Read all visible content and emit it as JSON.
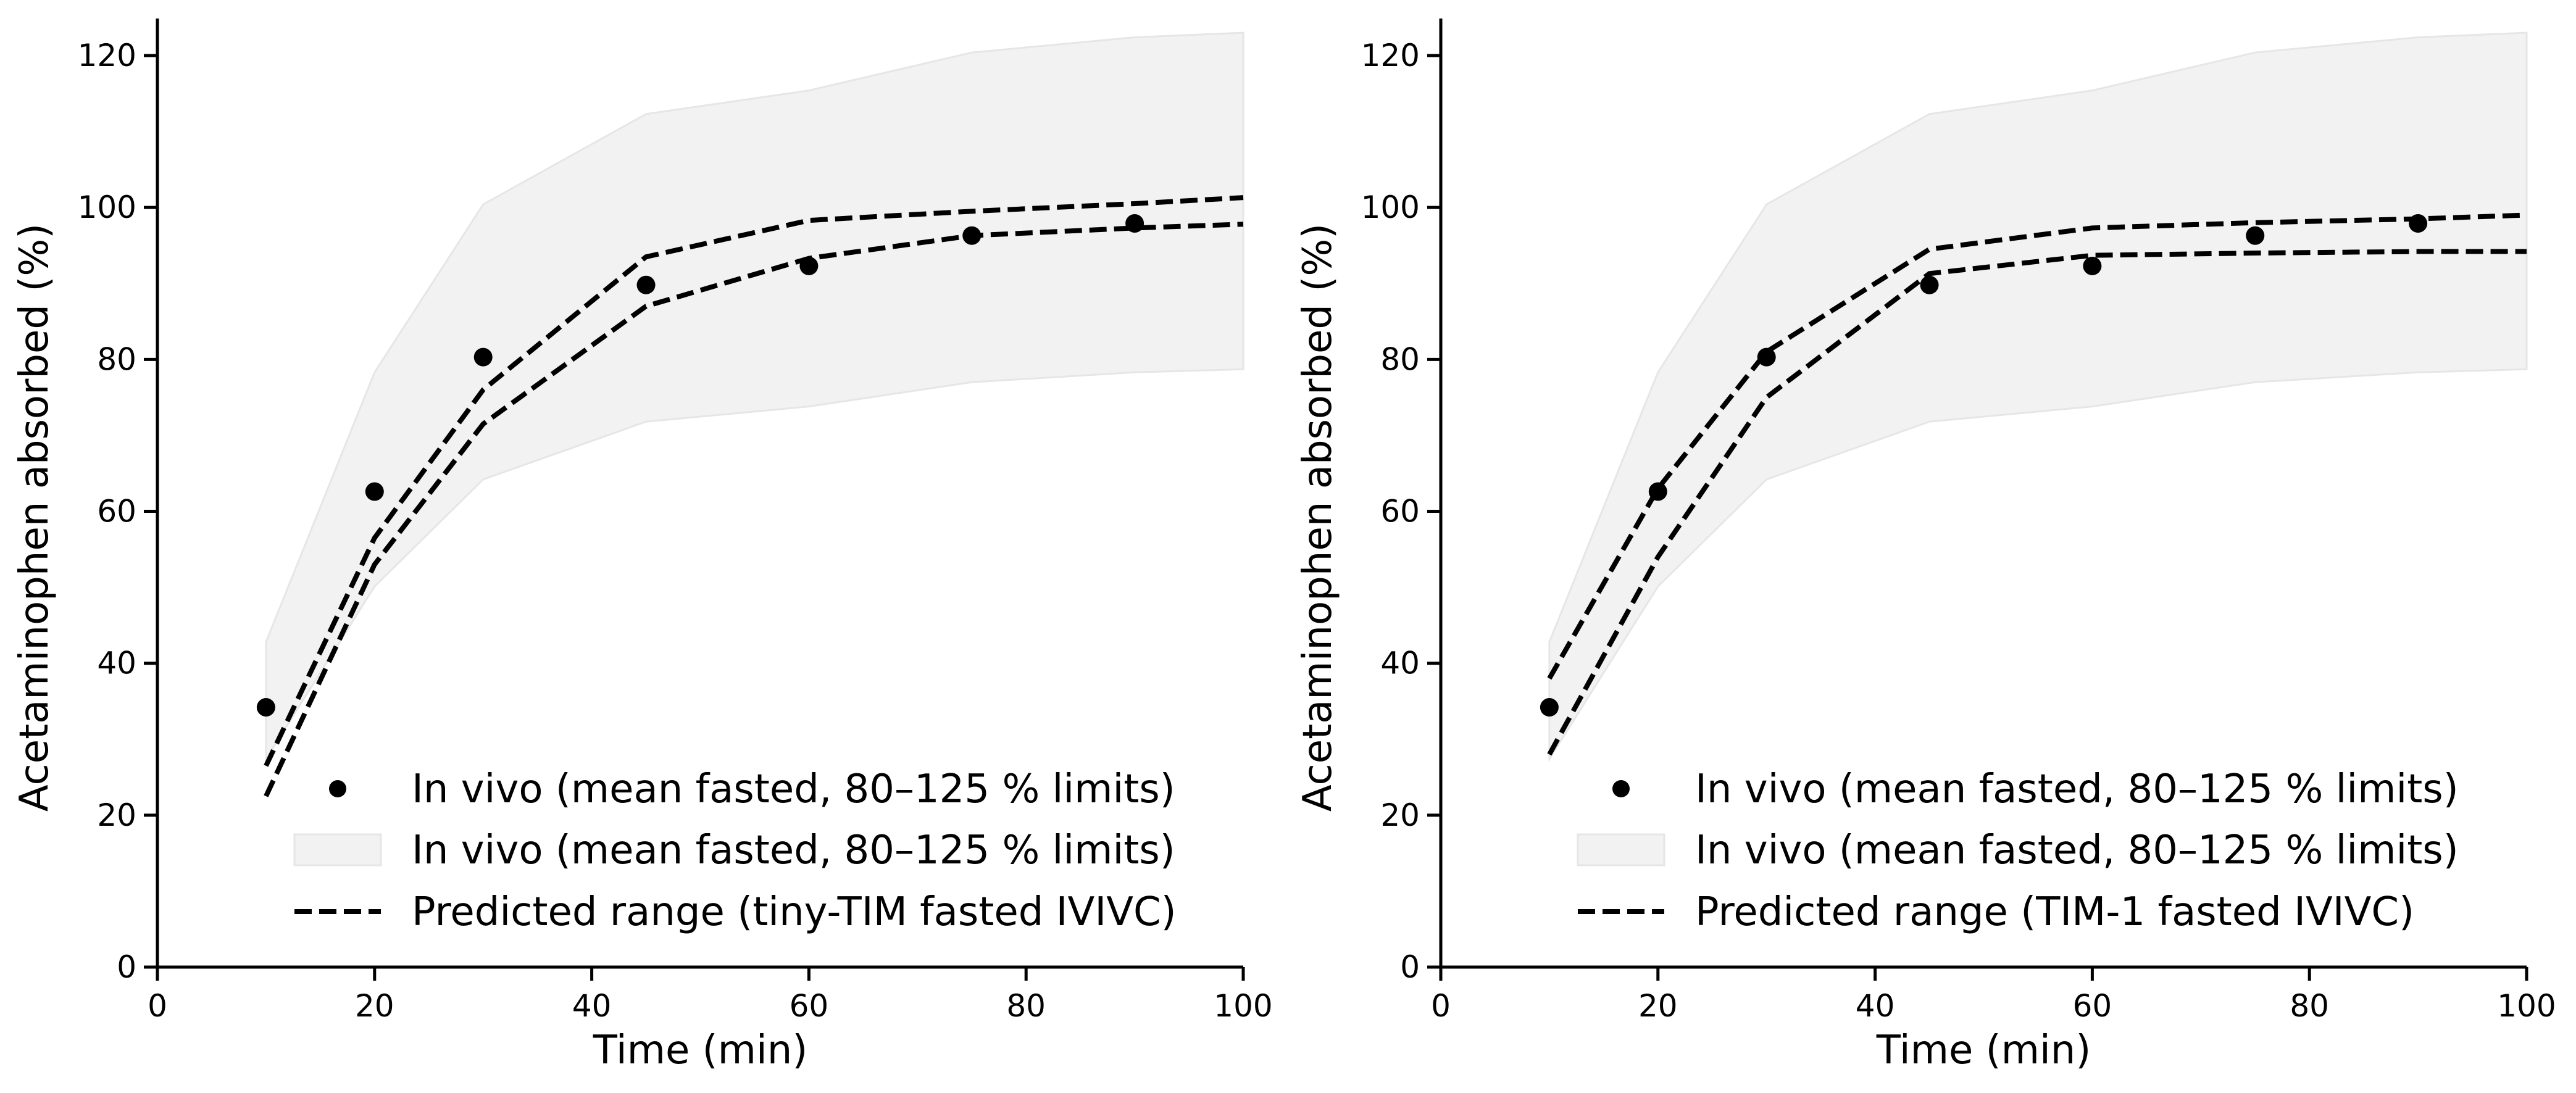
{
  "chart_data": [
    {
      "type": "line",
      "xlabel": "Time (min)",
      "ylabel": "Acetaminophen absorbed (%)",
      "xlim": [
        0,
        100
      ],
      "ylim": [
        0,
        125
      ],
      "xticks": [
        "0",
        "20",
        "40",
        "60",
        "80",
        "100"
      ],
      "yticks": [
        "0",
        "20",
        "40",
        "60",
        "80",
        "100",
        "120"
      ],
      "grid": false,
      "legend_position": "lower-right",
      "legend": [
        {
          "marker": "dot",
          "label": "In vivo (mean fasted, 80–125 % limits)"
        },
        {
          "marker": "band",
          "label": "In vivo (mean fasted, 80–125 % limits)"
        },
        {
          "marker": "dashed",
          "label": "Predicted range (tiny-TIM fasted IVIVC)"
        }
      ],
      "in_vivo_points": {
        "x": [
          10,
          20,
          30,
          45,
          60,
          75,
          90
        ],
        "y": [
          34.2,
          62.6,
          80.3,
          89.8,
          92.3,
          96.3,
          97.9
        ]
      },
      "band": {
        "x": [
          10,
          20,
          30,
          45,
          60,
          75,
          90,
          100
        ],
        "upper": [
          42.8,
          78.3,
          100.4,
          112.3,
          115.4,
          120.4,
          122.4,
          123.0
        ],
        "lower": [
          27.4,
          50.1,
          64.2,
          71.8,
          73.8,
          77.0,
          78.3,
          78.7
        ]
      },
      "series": [
        {
          "name": "Predicted upper",
          "x": [
            10,
            20,
            30,
            45,
            60,
            75,
            90,
            100
          ],
          "y": [
            26.5,
            56.5,
            76.0,
            93.5,
            98.3,
            99.5,
            100.5,
            101.3
          ]
        },
        {
          "name": "Predicted lower",
          "x": [
            10,
            20,
            30,
            45,
            60,
            75,
            90,
            100
          ],
          "y": [
            22.5,
            53.0,
            71.5,
            87.0,
            93.3,
            96.3,
            97.3,
            97.8
          ]
        }
      ]
    },
    {
      "type": "line",
      "xlabel": "Time (min)",
      "ylabel": "Acetaminophen absorbed (%)",
      "xlim": [
        0,
        100
      ],
      "ylim": [
        0,
        125
      ],
      "xticks": [
        "0",
        "20",
        "40",
        "60",
        "80",
        "100"
      ],
      "yticks": [
        "0",
        "20",
        "40",
        "60",
        "80",
        "100",
        "120"
      ],
      "grid": false,
      "legend_position": "lower-right",
      "legend": [
        {
          "marker": "dot",
          "label": "In vivo (mean fasted, 80–125 % limits)"
        },
        {
          "marker": "band",
          "label": "In vivo (mean fasted, 80–125 % limits)"
        },
        {
          "marker": "dashed",
          "label": "Predicted range (TIM-1 fasted IVIVC)"
        }
      ],
      "in_vivo_points": {
        "x": [
          10,
          20,
          30,
          45,
          60,
          75,
          90
        ],
        "y": [
          34.2,
          62.6,
          80.3,
          89.8,
          92.3,
          96.3,
          97.9
        ]
      },
      "band": {
        "x": [
          10,
          20,
          30,
          45,
          60,
          75,
          90,
          100
        ],
        "upper": [
          42.8,
          78.3,
          100.4,
          112.3,
          115.4,
          120.4,
          122.4,
          123.0
        ],
        "lower": [
          27.4,
          50.1,
          64.2,
          71.8,
          73.8,
          77.0,
          78.3,
          78.7
        ]
      },
      "series": [
        {
          "name": "Predicted upper",
          "x": [
            10,
            20,
            30,
            45,
            60,
            75,
            90,
            100
          ],
          "y": [
            38.0,
            63.0,
            81.0,
            94.5,
            97.3,
            98.0,
            98.5,
            99.0
          ]
        },
        {
          "name": "Predicted lower",
          "x": [
            10,
            20,
            30,
            45,
            60,
            75,
            90,
            100
          ],
          "y": [
            28.0,
            54.0,
            75.0,
            91.3,
            93.7,
            94.0,
            94.2,
            94.2
          ]
        }
      ]
    }
  ],
  "colors": {
    "band_fill": "#f2f2f2",
    "band_edge": "#e6e6e6",
    "line": "#000000",
    "marker": "#000000"
  }
}
